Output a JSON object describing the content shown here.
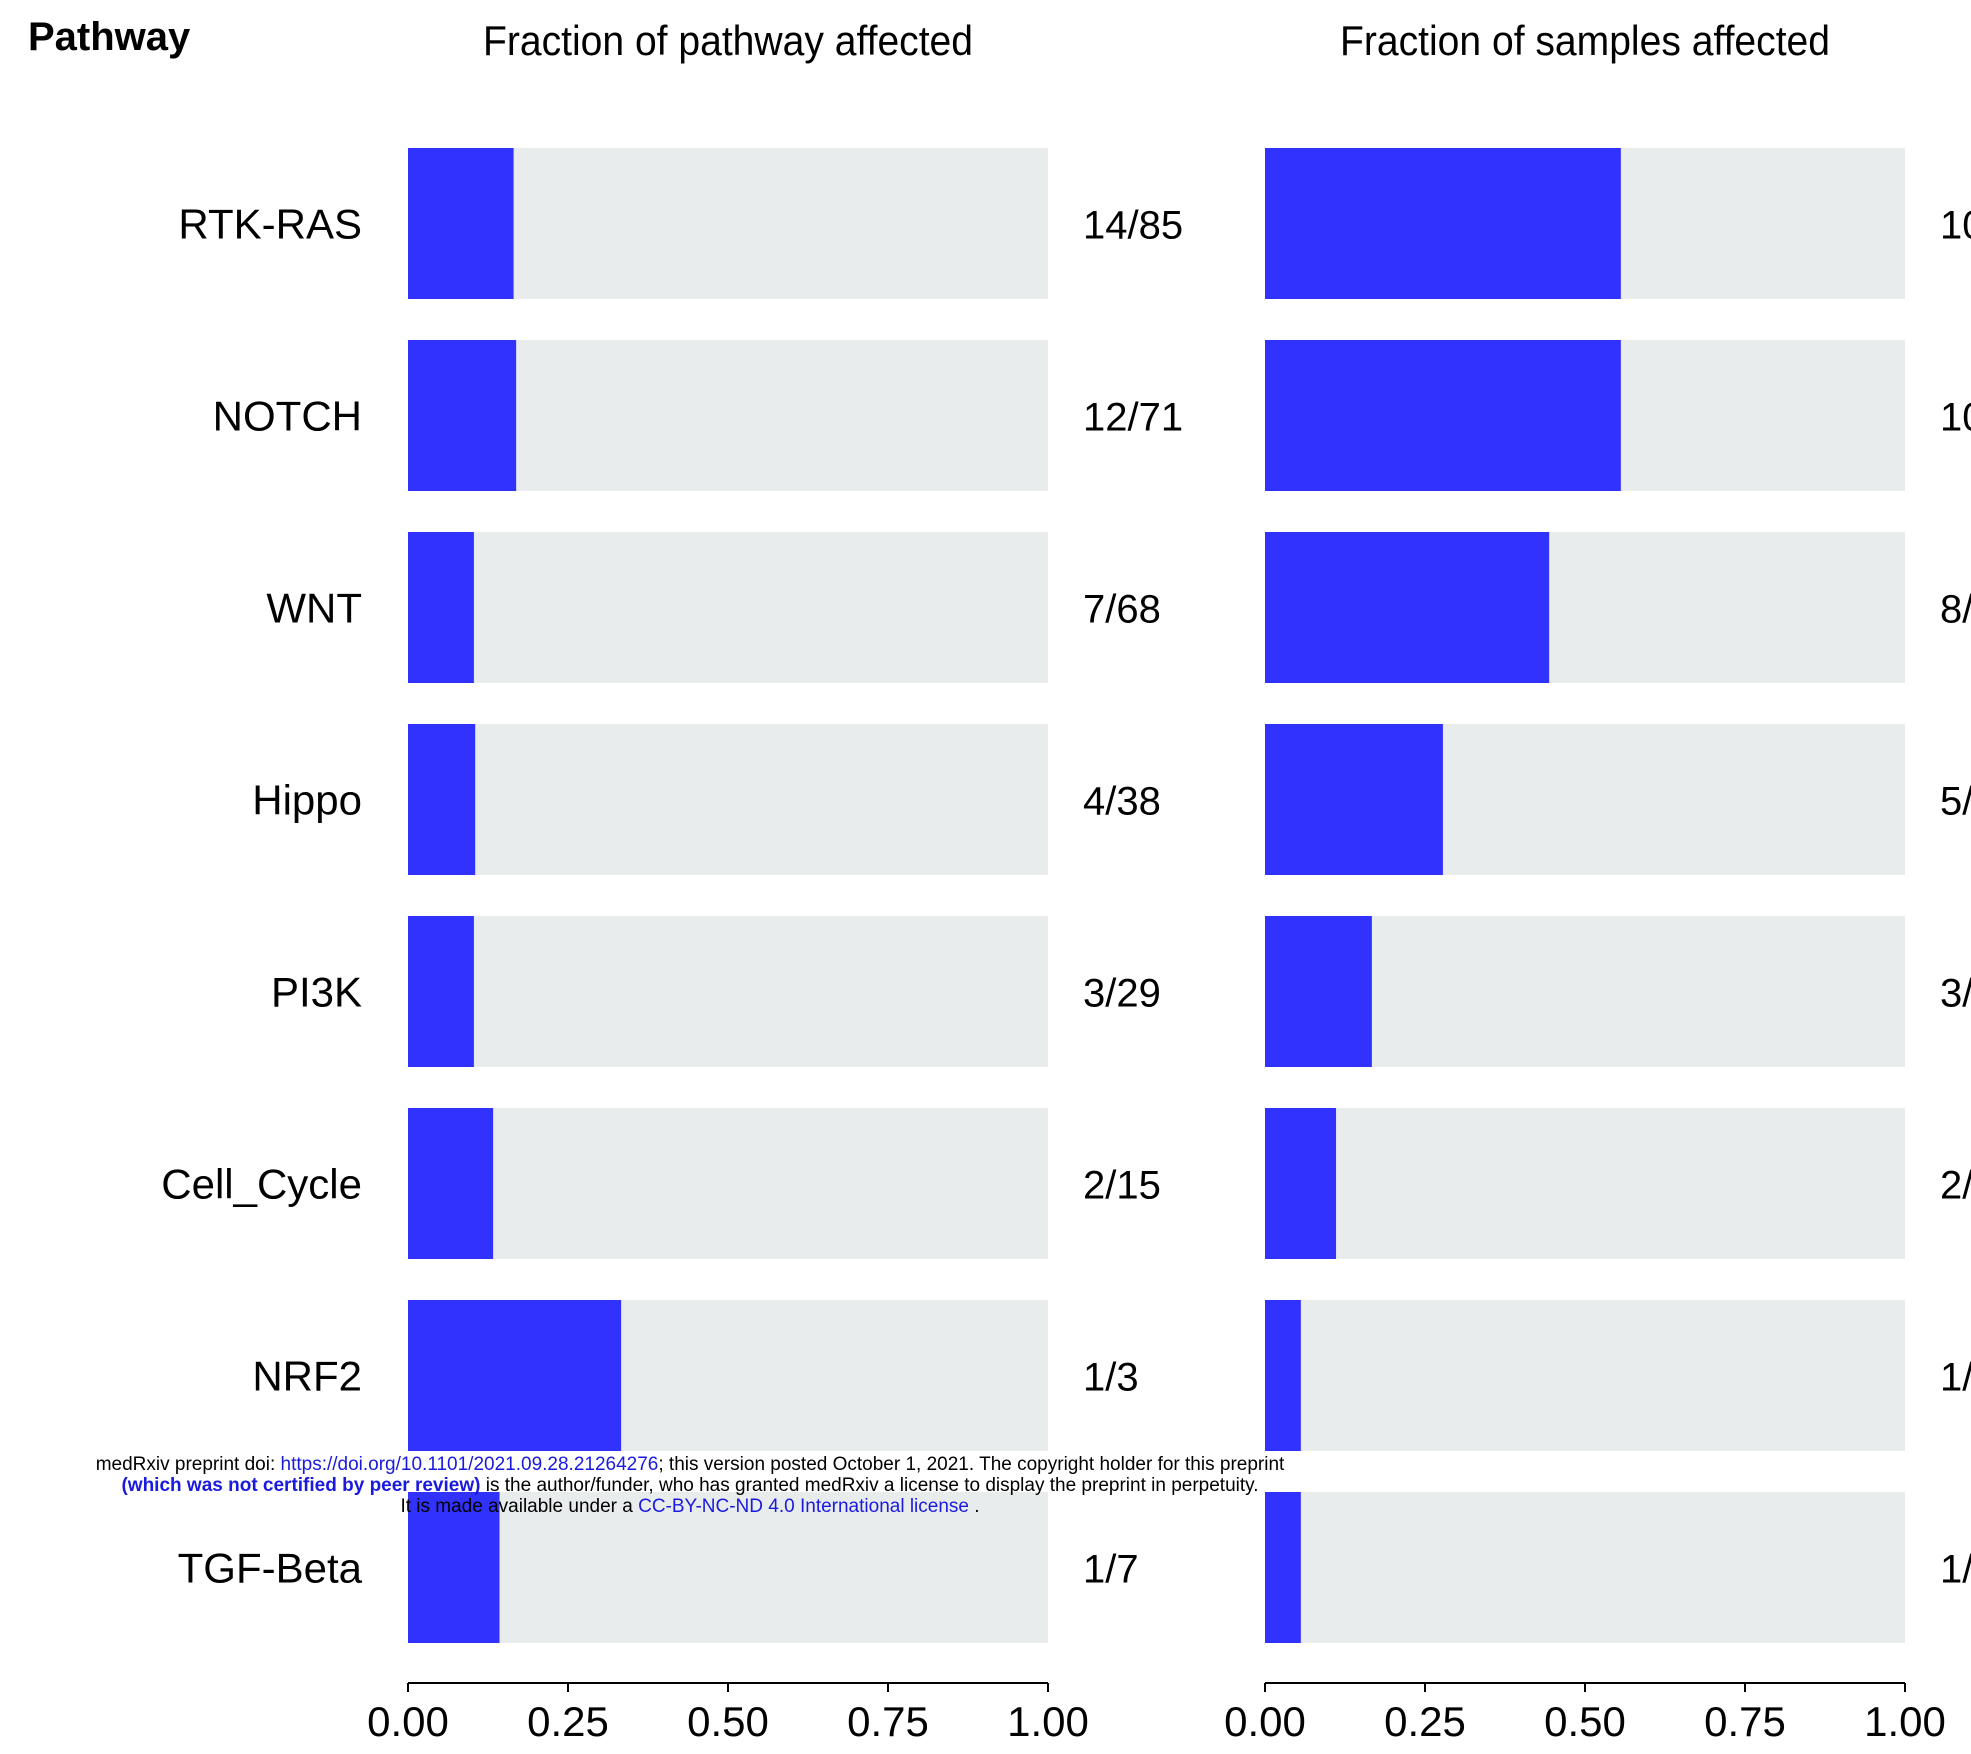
{
  "chart_data": {
    "type": "bar",
    "orientation": "horizontal",
    "row_header": "Pathway",
    "categories": [
      "RTK-RAS",
      "NOTCH",
      "WNT",
      "Hippo",
      "PI3K",
      "Cell_Cycle",
      "NRF2",
      "TGF-Beta"
    ],
    "xlim": [
      0,
      1
    ],
    "xticks": [
      "0.00",
      "0.25",
      "0.50",
      "0.75",
      "1.00"
    ],
    "bar_color": "#3232ff",
    "background_color": "#e9eced",
    "panels": [
      {
        "title": "Fraction of pathway affected",
        "values": [
          0.165,
          0.169,
          0.103,
          0.105,
          0.103,
          0.133,
          0.333,
          0.143
        ],
        "labels": [
          "14/85",
          "12/71",
          "7/68",
          "4/38",
          "3/29",
          "2/15",
          "1/3",
          "1/7"
        ]
      },
      {
        "title": "Fraction of samples affected",
        "values": [
          0.556,
          0.556,
          0.444,
          0.278,
          0.167,
          0.111,
          0.056,
          0.056
        ],
        "labels": [
          "10",
          "10",
          "8/",
          "5/",
          "3/",
          "2/",
          "1/",
          "1/"
        ]
      }
    ]
  },
  "notice": {
    "line1_pre": "medRxiv preprint doi: ",
    "doi_link": "https://doi.org/10.1101/2021.09.28.21264276",
    "line1_post": "; this version posted October 1, 2021. The copyright holder for this preprint",
    "line2_bold": "(which was not certified by peer review)",
    "line2_post": " is the author/funder, who has granted medRxiv a license to display the preprint in perpetuity.",
    "line3_pre": "It is made available under a ",
    "license_link": "CC-BY-NC-ND 4.0 International license",
    "line3_post": " ."
  }
}
